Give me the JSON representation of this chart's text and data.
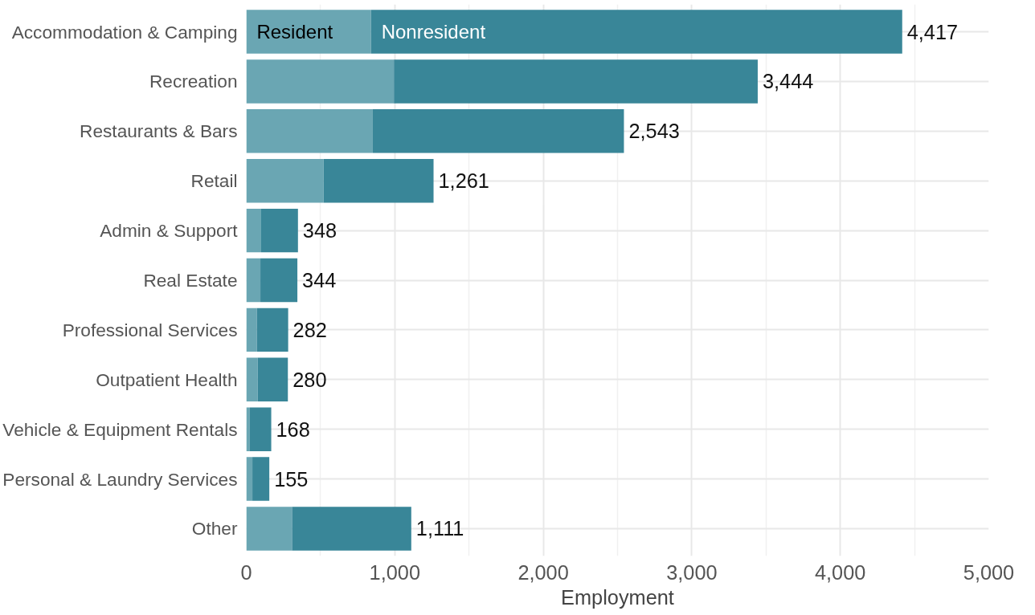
{
  "chart_data": {
    "type": "bar",
    "orientation": "horizontal",
    "stacked": true,
    "xlabel": "Employment",
    "categories": [
      "Accommodation & Camping",
      "Recreation",
      "Restaurants & Bars",
      "Retail",
      "Admin & Support",
      "Real Estate",
      "Professional Services",
      "Outpatient Health",
      "Vehicle & Equipment Rentals",
      "Personal & Laundry Services",
      "Other"
    ],
    "series": [
      {
        "name": "Resident",
        "color": "#6aa6b3",
        "values": [
          840,
          994,
          852,
          521,
          100,
          95,
          71,
          77,
          24,
          41,
          308
        ]
      },
      {
        "name": "Nonresident",
        "color": "#398698",
        "values": [
          3577,
          2450,
          1691,
          740,
          248,
          249,
          211,
          203,
          144,
          114,
          803
        ]
      }
    ],
    "totals": [
      "4,417",
      "3,444",
      "2,543",
      "1,261",
      "348",
      "344",
      "282",
      "280",
      "168",
      "155",
      "1,111"
    ],
    "xlim": [
      0,
      5000
    ],
    "xticks": [
      {
        "value": 0,
        "label": "0"
      },
      {
        "value": 1000,
        "label": "1,000"
      },
      {
        "value": 2000,
        "label": "2,000"
      },
      {
        "value": 3000,
        "label": "3,000"
      },
      {
        "value": 4000,
        "label": "4,000"
      },
      {
        "value": 5000,
        "label": "5,000"
      }
    ],
    "grid": true
  }
}
